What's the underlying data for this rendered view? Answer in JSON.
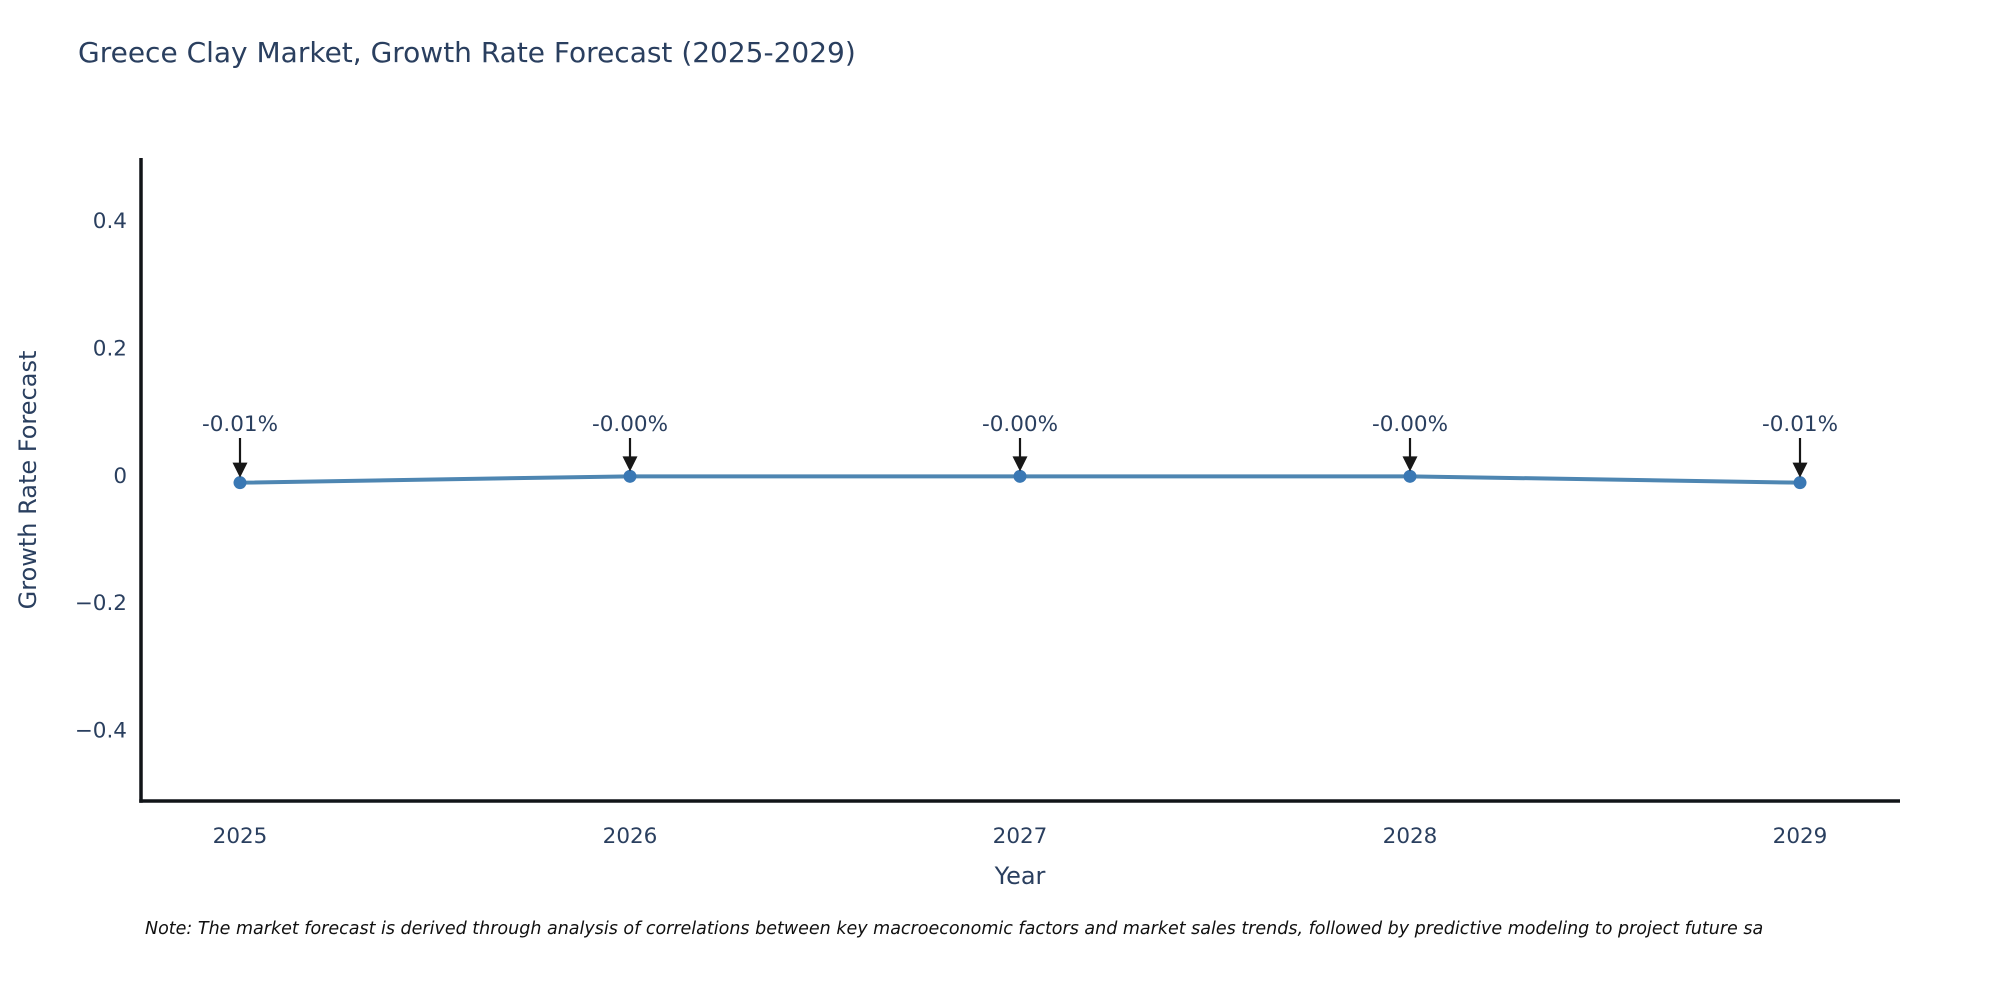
{
  "chart_data": {
    "type": "line",
    "title": "Greece Clay Market, Growth Rate Forecast (2025-2029)",
    "xlabel": "Year",
    "ylabel": "Growth Rate Forecast",
    "x": [
      2025,
      2026,
      2027,
      2028,
      2029
    ],
    "xtick_labels": [
      "2025",
      "2026",
      "2027",
      "2028",
      "2029"
    ],
    "series": [
      {
        "name": "Growth Rate Forecast",
        "values": [
          -0.01,
          -0.0,
          -0.0,
          -0.0,
          -0.01
        ]
      }
    ],
    "point_labels": [
      "-0.01%",
      "-0.00%",
      "-0.00%",
      "-0.00%",
      "-0.01%"
    ],
    "yticks": [
      0.4,
      0.2,
      0,
      -0.2,
      -0.4
    ],
    "ytick_labels": [
      "0.4",
      "0.2",
      "0",
      "−0.2",
      "−0.4"
    ],
    "ylim": [
      -0.51,
      0.5
    ],
    "grid": false,
    "legend": "none",
    "annotation_arrows": true,
    "colors": {
      "line": "#4e86b2",
      "marker": "#3a78b4",
      "axis": "#111418",
      "label_text": "#2a3f5f",
      "arrow": "#171717"
    }
  },
  "footnote": "Note: The market forecast is derived through analysis of correlations between key macroeconomic factors and market sales trends, followed by predictive modeling to project future sa"
}
